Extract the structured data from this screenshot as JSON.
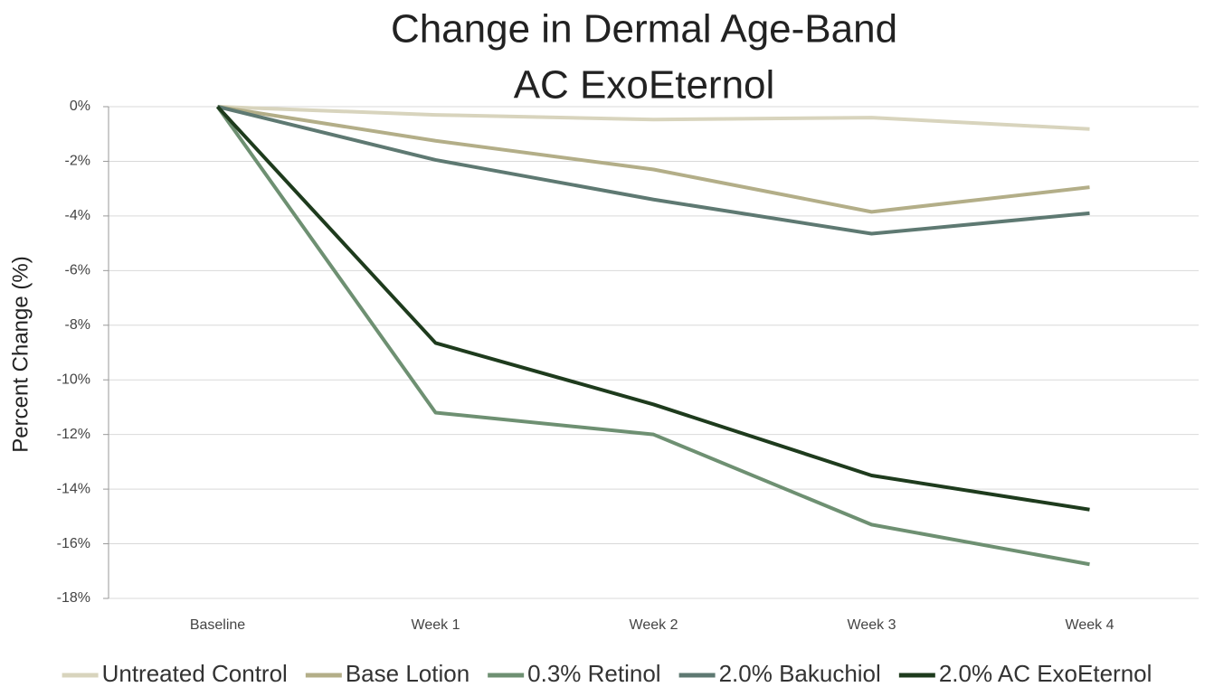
{
  "chart_data": {
    "type": "line",
    "title": [
      "Change in Dermal Age-Band",
      "AC ExoEternol"
    ],
    "y_label": "Percent Change (%)",
    "categories": [
      "Baseline",
      "Week 1",
      "Week 2",
      "Week 3",
      "Week 4"
    ],
    "series": [
      {
        "name": "Untreated Control",
        "color": "#d8d4bd",
        "values": [
          0,
          -0.3,
          -0.47,
          -0.4,
          -0.82
        ]
      },
      {
        "name": "Base Lotion",
        "color": "#b3ae88",
        "values": [
          0,
          -1.25,
          -2.3,
          -3.85,
          -2.95
        ]
      },
      {
        "name": "0.3% Retinol",
        "color": "#6e9072",
        "values": [
          0,
          -11.2,
          -12.0,
          -15.3,
          -16.75
        ]
      },
      {
        "name": "2.0% Bakuchiol",
        "color": "#5e7972",
        "values": [
          0,
          -1.95,
          -3.4,
          -4.65,
          -3.9
        ]
      },
      {
        "name": "2.0% AC ExoEternol",
        "color": "#1e3b1d",
        "values": [
          0,
          -8.65,
          -10.9,
          -13.5,
          -14.75
        ]
      }
    ],
    "ylim": [
      -18,
      0
    ],
    "yticks": [
      {
        "value": 0,
        "label": "0%"
      },
      {
        "value": -2,
        "label": "-2%"
      },
      {
        "value": -4,
        "label": "-4%"
      },
      {
        "value": -6,
        "label": "-6%"
      },
      {
        "value": -8,
        "label": "-8%"
      },
      {
        "value": -10,
        "label": "-10%"
      },
      {
        "value": -12,
        "label": "-12%"
      },
      {
        "value": -14,
        "label": "-14%"
      },
      {
        "value": -16,
        "label": "-16%"
      },
      {
        "value": -18,
        "label": "-18%"
      }
    ],
    "grid": true,
    "legend": "bottom"
  }
}
